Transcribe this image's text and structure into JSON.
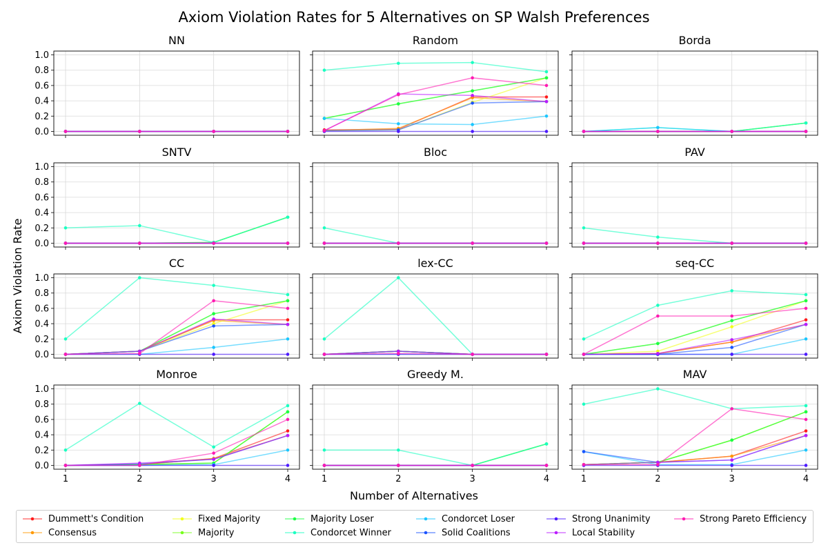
{
  "chart_data": {
    "type": "line",
    "title": "Axiom Violation Rates for 5 Alternatives on SP Walsh Preferences",
    "xlabel": "Number of Alternatives",
    "ylabel": "Axiom Violation Rate",
    "x": [
      1,
      2,
      3,
      4
    ],
    "xticks": [
      "1",
      "2",
      "3",
      "4"
    ],
    "yticks": [
      "0.0",
      "0.2",
      "0.4",
      "0.6",
      "0.8",
      "1.0"
    ],
    "ylim": [
      -0.05,
      1.05
    ],
    "grid": true,
    "legend_position": "bottom",
    "series": [
      {
        "name": "Dummett's Condition",
        "color": "#ff1a1a"
      },
      {
        "name": "Consensus",
        "color": "#ff9900"
      },
      {
        "name": "Fixed Majority",
        "color": "#f2ff1a"
      },
      {
        "name": "Majority",
        "color": "#77ff1a"
      },
      {
        "name": "Majority Loser",
        "color": "#1aff44"
      },
      {
        "name": "Condorcet Winner",
        "color": "#1affc2"
      },
      {
        "name": "Condorcet Loser",
        "color": "#1ac6ff"
      },
      {
        "name": "Solid Coalitions",
        "color": "#1a53ff"
      },
      {
        "name": "Strong Unanimity",
        "color": "#4d1aff"
      },
      {
        "name": "Local Stability",
        "color": "#bb1aff"
      },
      {
        "name": "Strong Pareto Efficiency",
        "color": "#ff1ab2"
      }
    ],
    "panels": [
      {
        "title": "NN",
        "values": [
          [
            0,
            0,
            0,
            0
          ],
          [
            0,
            0,
            0,
            0
          ],
          [
            0,
            0,
            0,
            0
          ],
          [
            0,
            0,
            0,
            0
          ],
          [
            0,
            0,
            0,
            0
          ],
          [
            0,
            0,
            0,
            0
          ],
          [
            0,
            0,
            0,
            0
          ],
          [
            0,
            0,
            0,
            0
          ],
          [
            0,
            0,
            0,
            0
          ],
          [
            0,
            0,
            0,
            0
          ],
          [
            0,
            0,
            0,
            0
          ]
        ]
      },
      {
        "title": "Random",
        "values": [
          [
            0.02,
            0.03,
            0.45,
            0.45
          ],
          [
            0.01,
            0.04,
            0.44,
            0.39
          ],
          [
            0.01,
            0.02,
            0.38,
            0.7
          ],
          [
            0.17,
            0.36,
            0.53,
            0.7
          ],
          [
            0.17,
            0.36,
            0.53,
            0.7
          ],
          [
            0.8,
            0.89,
            0.9,
            0.78
          ],
          [
            0.17,
            0.1,
            0.09,
            0.2
          ],
          [
            0.01,
            0.02,
            0.37,
            0.39
          ],
          [
            0,
            0,
            0,
            0
          ],
          [
            0.01,
            0.49,
            0.47,
            0.39
          ],
          [
            0.01,
            0.48,
            0.7,
            0.6
          ]
        ]
      },
      {
        "title": "Borda",
        "values": [
          [
            0,
            0,
            0,
            0
          ],
          [
            0,
            0,
            0,
            0
          ],
          [
            0,
            0,
            0,
            0
          ],
          [
            0,
            0,
            0,
            0.11
          ],
          [
            0,
            0,
            0,
            0.11
          ],
          [
            0,
            0.05,
            0,
            0.11
          ],
          [
            0,
            0.05,
            0,
            0
          ],
          [
            0,
            0,
            0,
            0
          ],
          [
            0,
            0,
            0,
            0
          ],
          [
            0,
            0,
            0,
            0
          ],
          [
            0,
            0,
            0,
            0
          ]
        ]
      },
      {
        "title": "SNTV",
        "values": [
          [
            0,
            0,
            0,
            0
          ],
          [
            0,
            0,
            0,
            0
          ],
          [
            0,
            0,
            0,
            0
          ],
          [
            0,
            0,
            0.01,
            0.34
          ],
          [
            0,
            0,
            0.01,
            0.34
          ],
          [
            0.2,
            0.23,
            0.01,
            0.34
          ],
          [
            0,
            0,
            0,
            0
          ],
          [
            0,
            0,
            0,
            0
          ],
          [
            0,
            0,
            0,
            0
          ],
          [
            0,
            0,
            0,
            0
          ],
          [
            0,
            0,
            0,
            0
          ]
        ]
      },
      {
        "title": "Bloc",
        "values": [
          [
            0,
            0,
            0,
            0
          ],
          [
            0,
            0,
            0,
            0
          ],
          [
            0,
            0,
            0,
            0
          ],
          [
            0,
            0,
            0,
            0
          ],
          [
            0,
            0,
            0,
            0
          ],
          [
            0.2,
            0,
            0,
            0
          ],
          [
            0,
            0,
            0,
            0
          ],
          [
            0,
            0,
            0,
            0
          ],
          [
            0,
            0,
            0,
            0
          ],
          [
            0,
            0,
            0,
            0
          ],
          [
            0,
            0,
            0,
            0
          ]
        ]
      },
      {
        "title": "PAV",
        "values": [
          [
            0,
            0,
            0,
            0
          ],
          [
            0,
            0,
            0,
            0
          ],
          [
            0,
            0,
            0,
            0
          ],
          [
            0,
            0,
            0,
            0
          ],
          [
            0,
            0,
            0,
            0
          ],
          [
            0.2,
            0.08,
            0,
            0
          ],
          [
            0,
            0,
            0,
            0
          ],
          [
            0,
            0,
            0,
            0
          ],
          [
            0,
            0,
            0,
            0
          ],
          [
            0,
            0,
            0,
            0
          ],
          [
            0,
            0,
            0,
            0
          ]
        ]
      },
      {
        "title": "CC",
        "values": [
          [
            0,
            0.04,
            0.45,
            0.45
          ],
          [
            0,
            0.04,
            0.44,
            0.39
          ],
          [
            0,
            0.04,
            0.4,
            0.7
          ],
          [
            0,
            0.04,
            0.53,
            0.7
          ],
          [
            0,
            0.04,
            0.53,
            0.7
          ],
          [
            0.2,
            1.0,
            0.9,
            0.78
          ],
          [
            0,
            0,
            0.09,
            0.2
          ],
          [
            0,
            0.04,
            0.37,
            0.39
          ],
          [
            0,
            0,
            0,
            0
          ],
          [
            0,
            0.04,
            0.46,
            0.39
          ],
          [
            0,
            0.01,
            0.7,
            0.6
          ]
        ]
      },
      {
        "title": "lex-CC",
        "values": [
          [
            0,
            0.04,
            0,
            0
          ],
          [
            0,
            0.04,
            0,
            0
          ],
          [
            0,
            0.04,
            0,
            0
          ],
          [
            0,
            0.04,
            0,
            0
          ],
          [
            0,
            0.04,
            0,
            0
          ],
          [
            0.2,
            1.0,
            0,
            0
          ],
          [
            0,
            0,
            0,
            0
          ],
          [
            0,
            0.04,
            0,
            0
          ],
          [
            0,
            0,
            0,
            0
          ],
          [
            0,
            0.04,
            0,
            0
          ],
          [
            0,
            0.01,
            0,
            0
          ]
        ]
      },
      {
        "title": "seq-CC",
        "values": [
          [
            0,
            0.01,
            0.16,
            0.45
          ],
          [
            0,
            0.01,
            0.16,
            0.39
          ],
          [
            0,
            0.04,
            0.36,
            0.7
          ],
          [
            0,
            0.14,
            0.44,
            0.7
          ],
          [
            0,
            0.14,
            0.44,
            0.7
          ],
          [
            0.2,
            0.64,
            0.83,
            0.78
          ],
          [
            0,
            0,
            0,
            0.2
          ],
          [
            0,
            0,
            0.09,
            0.39
          ],
          [
            0,
            0,
            0,
            0
          ],
          [
            0,
            0.01,
            0.19,
            0.39
          ],
          [
            0,
            0.5,
            0.5,
            0.6
          ]
        ]
      },
      {
        "title": "Monroe",
        "values": [
          [
            0,
            0.01,
            0.09,
            0.45
          ],
          [
            0,
            0.01,
            0.09,
            0.39
          ],
          [
            0,
            0.01,
            0.03,
            0.7
          ],
          [
            0,
            0.01,
            0.03,
            0.7
          ],
          [
            0,
            0.01,
            0.03,
            0.7
          ],
          [
            0.2,
            0.81,
            0.24,
            0.78
          ],
          [
            0,
            0,
            0.01,
            0.2
          ],
          [
            0,
            0.02,
            0.08,
            0.39
          ],
          [
            0,
            0,
            0,
            0
          ],
          [
            0,
            0.03,
            0.08,
            0.39
          ],
          [
            0,
            0,
            0.16,
            0.6
          ]
        ]
      },
      {
        "title": "Greedy M.",
        "values": [
          [
            0,
            0,
            0,
            0
          ],
          [
            0,
            0,
            0,
            0
          ],
          [
            0,
            0,
            0,
            0
          ],
          [
            0,
            0,
            0,
            0.28
          ],
          [
            0,
            0,
            0,
            0.28
          ],
          [
            0.2,
            0.2,
            0,
            0.28
          ],
          [
            0,
            0,
            0,
            0
          ],
          [
            0,
            0,
            0,
            0
          ],
          [
            0,
            0,
            0,
            0
          ],
          [
            0,
            0,
            0,
            0
          ],
          [
            0,
            0,
            0,
            0
          ]
        ]
      },
      {
        "title": "MAV",
        "values": [
          [
            0.01,
            0.04,
            0.12,
            0.45
          ],
          [
            0.01,
            0.04,
            0.12,
            0.39
          ],
          [
            0.01,
            0.04,
            0.33,
            0.7
          ],
          [
            0.01,
            0.04,
            0.33,
            0.7
          ],
          [
            0.01,
            0.04,
            0.33,
            0.7
          ],
          [
            0.8,
            1.0,
            0.74,
            0.78
          ],
          [
            0.18,
            0.01,
            0.01,
            0.2
          ],
          [
            0.18,
            0.04,
            0.07,
            0.39
          ],
          [
            0,
            0,
            0,
            0
          ],
          [
            0.01,
            0.04,
            0.07,
            0.39
          ],
          [
            0.01,
            0.01,
            0.74,
            0.6
          ]
        ]
      }
    ]
  }
}
